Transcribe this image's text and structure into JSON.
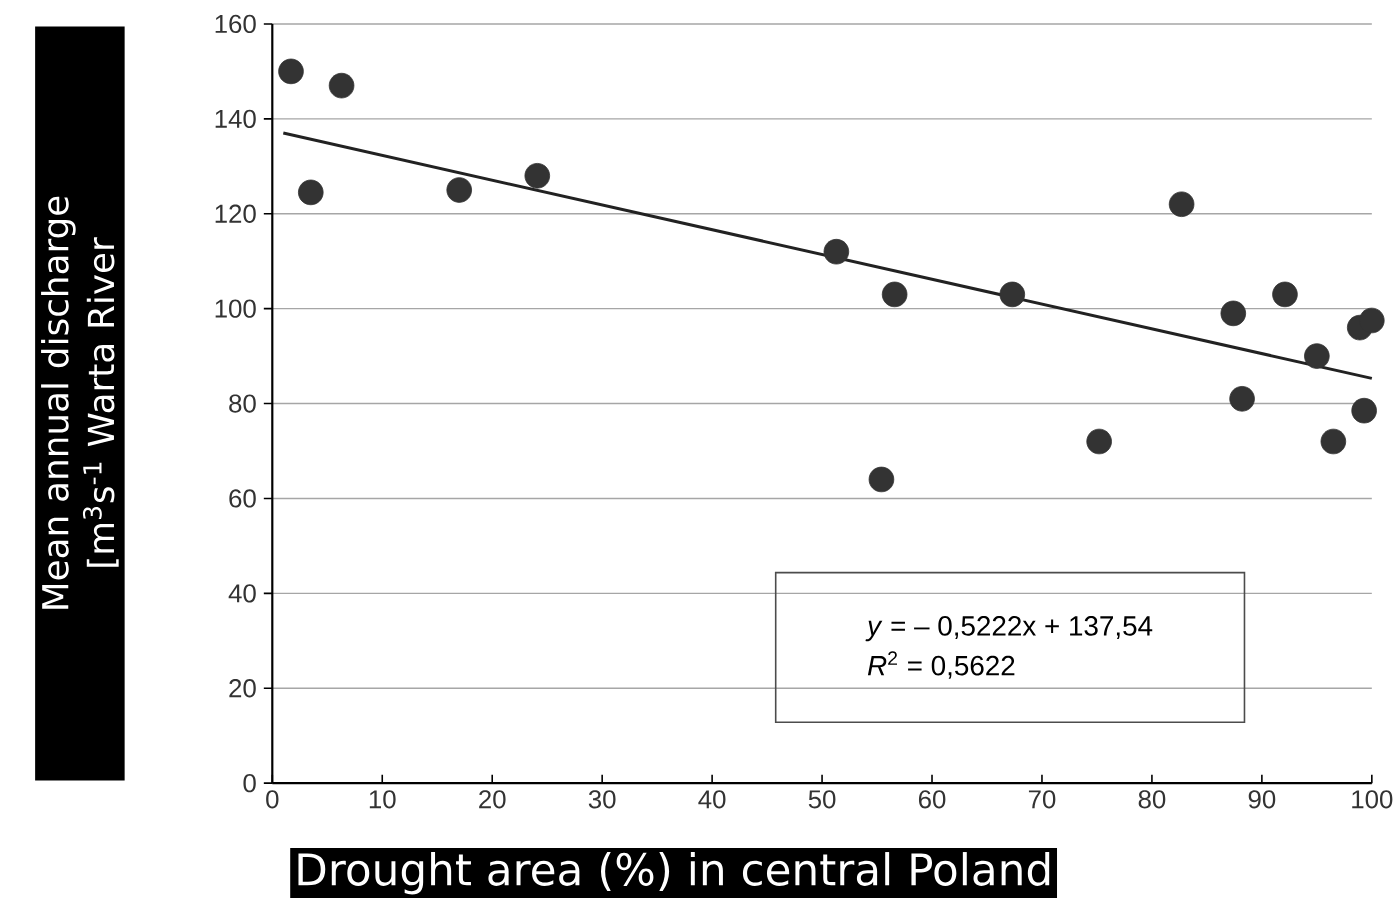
{
  "chart_data": {
    "type": "scatter",
    "xlabel": "Drought area (%) in central Poland",
    "ylabel": "Mean annual discharge [m$^{3}$s$^{-1}$ Warta River",
    "xlim": [
      0,
      100
    ],
    "ylim": [
      0,
      160
    ],
    "xticks": [
      0,
      10,
      20,
      30,
      40,
      50,
      60,
      70,
      80,
      90,
      100
    ],
    "yticks": [
      0,
      20,
      40,
      60,
      80,
      100,
      120,
      140,
      160
    ],
    "grid": "y",
    "series": [
      {
        "marker": "circle",
        "color": "#333333",
        "x": [
          1.7,
          3.5,
          6.3,
          17.0,
          24.1,
          51.3,
          56.6,
          55.4,
          67.3,
          75.2,
          82.7,
          87.4,
          88.2,
          92.1,
          95.0,
          96.5,
          98.9,
          100,
          99.3
        ],
        "values": [
          150,
          124.5,
          147,
          125,
          128,
          112,
          103,
          64,
          103,
          72,
          122,
          99,
          81,
          103,
          90,
          72,
          96,
          97.5,
          78.5
        ]
      },
      {
        "type": "line",
        "marker": "none",
        "color": "#222222",
        "x": [
          1,
          100
        ],
        "values": [
          137.0,
          85.3
        ]
      }
    ],
    "annotations": [
      "*y* = – 0,5222x + 137,54",
      "*R*$^{2}$ = 0,5622"
    ]
  }
}
